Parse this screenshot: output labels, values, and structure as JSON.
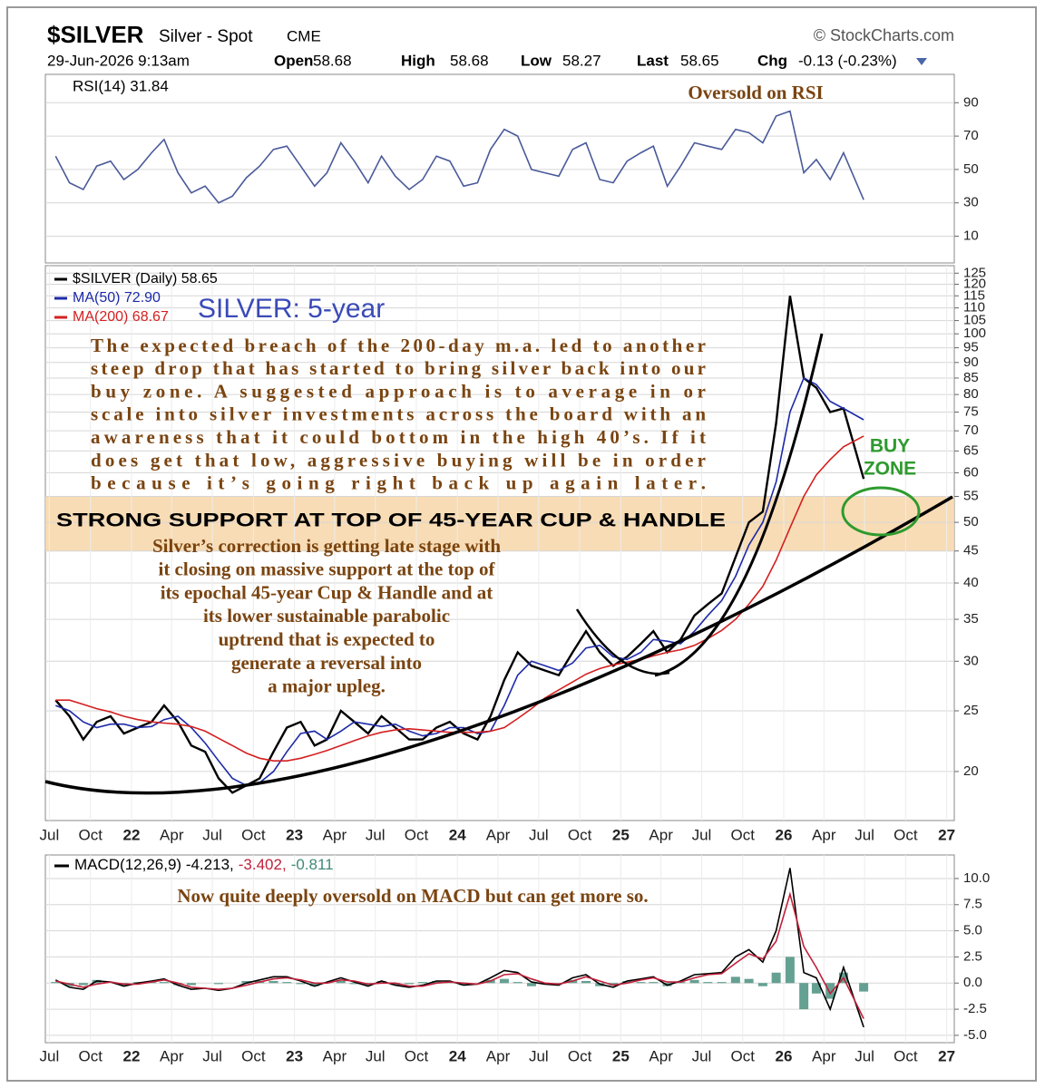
{
  "header": {
    "symbol": "$SILVER",
    "name": "Silver - Spot",
    "exchange": "CME",
    "source": "© StockCharts.com",
    "date": "29-Jun-2026 9:13am",
    "open_label": "Open",
    "open": "58.68",
    "high_label": "High",
    "high": "58.68",
    "low_label": "Low",
    "low": "58.27",
    "last_label": "Last",
    "last": "58.65",
    "chg_label": "Chg",
    "chg": "-0.13 (-0.23%)"
  },
  "chart_data": [
    {
      "type": "line",
      "xlim": [
        "2021-06-22",
        "2027-01-18"
      ],
      "ylim": [
        -6,
        107
      ],
      "yticks": [
        10,
        30,
        50,
        70,
        90
      ],
      "grid": true,
      "x": [
        "2021-07-15",
        "2021-08-15",
        "2021-09-15",
        "2021-10-15",
        "2021-11-15",
        "2021-12-15",
        "2022-01-15",
        "2022-02-15",
        "2022-03-15",
        "2022-04-15",
        "2022-05-15",
        "2022-06-15",
        "2022-07-15",
        "2022-08-15",
        "2022-09-15",
        "2022-10-15",
        "2022-11-15",
        "2022-12-15",
        "2023-01-15",
        "2023-02-15",
        "2023-03-15",
        "2023-04-15",
        "2023-05-15",
        "2023-06-15",
        "2023-07-15",
        "2023-08-15",
        "2023-09-15",
        "2023-10-15",
        "2023-11-15",
        "2023-12-15",
        "2024-01-15",
        "2024-02-15",
        "2024-03-15",
        "2024-04-15",
        "2024-05-15",
        "2024-06-15",
        "2024-07-15",
        "2024-08-15",
        "2024-09-15",
        "2024-10-15",
        "2024-11-15",
        "2024-12-15",
        "2025-01-15",
        "2025-02-15",
        "2025-03-15",
        "2025-04-15",
        "2025-05-15",
        "2025-06-15",
        "2025-07-15",
        "2025-08-15",
        "2025-09-15",
        "2025-10-15",
        "2025-11-15",
        "2025-12-15",
        "2026-01-15",
        "2026-02-15",
        "2026-03-15",
        "2026-04-15",
        "2026-05-15",
        "2026-06-29"
      ],
      "series": [
        {
          "name": "RSI(14) 31.84",
          "color": "#4a5a9a",
          "values": [
            58,
            42,
            38,
            52,
            55,
            44,
            50,
            60,
            68,
            48,
            36,
            40,
            30,
            34,
            45,
            52,
            62,
            64,
            52,
            40,
            48,
            66,
            55,
            42,
            58,
            46,
            38,
            44,
            58,
            55,
            40,
            42,
            62,
            74,
            70,
            50,
            48,
            46,
            62,
            66,
            44,
            42,
            55,
            60,
            64,
            40,
            52,
            66,
            64,
            62,
            74,
            72,
            66,
            82,
            85,
            48,
            56,
            44,
            60,
            31.84
          ]
        }
      ],
      "annotation": "Oversold on RSI"
    },
    {
      "type": "line",
      "log_scale": true,
      "xlim": [
        "2021-06-22",
        "2027-01-18"
      ],
      "ylim": [
        16.7,
        128.5
      ],
      "grid": true,
      "yticks": [
        20,
        25,
        30,
        35,
        40,
        45,
        50,
        55,
        60,
        65,
        70,
        75,
        80,
        85,
        90,
        95,
        100,
        105,
        110,
        115,
        120,
        125
      ],
      "xticks": [
        {
          "value": "2021-07-01",
          "label": "Jul"
        },
        {
          "value": "2021-10-01",
          "label": "Oct"
        },
        {
          "value": "2022-01-01",
          "label": "22"
        },
        {
          "value": "2022-04-01",
          "label": "Apr"
        },
        {
          "value": "2022-07-01",
          "label": "Jul"
        },
        {
          "value": "2022-10-01",
          "label": "Oct"
        },
        {
          "value": "2023-01-01",
          "label": "23"
        },
        {
          "value": "2023-04-01",
          "label": "Apr"
        },
        {
          "value": "2023-07-01",
          "label": "Jul"
        },
        {
          "value": "2023-10-01",
          "label": "Oct"
        },
        {
          "value": "2024-01-01",
          "label": "24"
        },
        {
          "value": "2024-04-01",
          "label": "Apr"
        },
        {
          "value": "2024-07-01",
          "label": "Jul"
        },
        {
          "value": "2024-10-01",
          "label": "Oct"
        },
        {
          "value": "2025-01-01",
          "label": "25"
        },
        {
          "value": "2025-04-01",
          "label": "Apr"
        },
        {
          "value": "2025-07-01",
          "label": "Jul"
        },
        {
          "value": "2025-10-01",
          "label": "Oct"
        },
        {
          "value": "2026-01-01",
          "label": "26"
        },
        {
          "value": "2026-04-01",
          "label": "Apr"
        },
        {
          "value": "2026-07-01",
          "label": "Jul"
        },
        {
          "value": "2026-10-01",
          "label": "Oct"
        },
        {
          "value": "2027-01-01",
          "label": "27"
        }
      ],
      "x": [
        "2021-07-15",
        "2021-08-15",
        "2021-09-15",
        "2021-10-15",
        "2021-11-15",
        "2021-12-15",
        "2022-01-15",
        "2022-02-15",
        "2022-03-15",
        "2022-04-15",
        "2022-05-15",
        "2022-06-15",
        "2022-07-15",
        "2022-08-15",
        "2022-09-15",
        "2022-10-15",
        "2022-11-15",
        "2022-12-15",
        "2023-01-15",
        "2023-02-15",
        "2023-03-15",
        "2023-04-15",
        "2023-05-15",
        "2023-06-15",
        "2023-07-15",
        "2023-08-15",
        "2023-09-15",
        "2023-10-15",
        "2023-11-15",
        "2023-12-15",
        "2024-01-15",
        "2024-02-15",
        "2024-03-15",
        "2024-04-15",
        "2024-05-15",
        "2024-06-15",
        "2024-07-15",
        "2024-08-15",
        "2024-09-15",
        "2024-10-15",
        "2024-11-15",
        "2024-12-15",
        "2025-01-15",
        "2025-02-15",
        "2025-03-15",
        "2025-04-15",
        "2025-05-15",
        "2025-06-15",
        "2025-07-15",
        "2025-08-15",
        "2025-09-15",
        "2025-10-15",
        "2025-11-15",
        "2025-12-15",
        "2026-01-15",
        "2026-02-15",
        "2026-03-15",
        "2026-04-15",
        "2026-05-15",
        "2026-06-29"
      ],
      "series": [
        {
          "name": "$SILVER (Daily) 58.65",
          "color": "#000000",
          "values": [
            26,
            24.5,
            22.5,
            24,
            24.5,
            23,
            23.5,
            24,
            25.5,
            24,
            22,
            21.5,
            19.5,
            18.5,
            19,
            19.5,
            21.5,
            23.5,
            24,
            22,
            22.5,
            25,
            24,
            23,
            24.5,
            23.5,
            22.5,
            22.5,
            23.5,
            24,
            23,
            22.5,
            24.5,
            28,
            31,
            29.5,
            29,
            28.5,
            31,
            33.5,
            31,
            29.5,
            30.5,
            32,
            33.5,
            31,
            32.5,
            35.5,
            37,
            38.5,
            44,
            50,
            52,
            72,
            115,
            85,
            82,
            75,
            76,
            58.65
          ]
        },
        {
          "name": "MA(50) 72.90",
          "color": "#1c2aa8",
          "values": [
            25.5,
            25,
            24,
            23.5,
            23.8,
            23.8,
            23.5,
            23.6,
            24.2,
            24.5,
            23.5,
            22.2,
            20.8,
            19.5,
            19,
            19.2,
            20,
            21.5,
            23,
            23.2,
            22.5,
            23.2,
            24,
            23.8,
            23.6,
            23.8,
            23.2,
            22.8,
            23,
            23.5,
            23.5,
            23,
            23.2,
            25.5,
            28.5,
            30,
            29.5,
            29,
            29.8,
            31.5,
            31.8,
            30.5,
            30.2,
            31,
            32.5,
            32.3,
            32,
            33.5,
            35.5,
            37.5,
            41,
            46,
            50,
            58,
            75,
            85,
            83,
            78,
            76,
            72.9
          ]
        },
        {
          "name": "MA(200) 68.67",
          "color": "#d42020",
          "values": [
            26,
            26,
            25.6,
            25.2,
            24.9,
            24.5,
            24.2,
            24,
            23.9,
            23.8,
            23.6,
            23.2,
            22.6,
            22,
            21.4,
            21,
            20.8,
            20.8,
            21,
            21.3,
            21.6,
            22,
            22.4,
            22.8,
            23.1,
            23.3,
            23.4,
            23.3,
            23.2,
            23.1,
            23.1,
            23.1,
            23.2,
            23.5,
            24.3,
            25.2,
            26.2,
            27,
            27.8,
            28.6,
            29.2,
            29.6,
            29.9,
            30.2,
            30.6,
            31,
            31.3,
            31.8,
            32.6,
            33.6,
            35,
            37,
            39.5,
            43.5,
            49,
            55,
            59.5,
            63,
            66,
            68.67
          ]
        }
      ],
      "support_zone": [
        45,
        55
      ],
      "annotations": {
        "title": "SILVER: 5-year",
        "commentary": [
          "The expected breach of the 200-day m.a. led to another",
          "steep drop that has started to bring silver back into our",
          "buy zone. A suggested approach is to average in or",
          "scale into silver investments across the board with an",
          "awareness that it could bottom in the high 40’s. If it",
          "does get that low, aggressive buying will be in order",
          "because it’s going right back up again later."
        ],
        "support": "STRONG SUPPORT AT TOP OF 45-YEAR CUP & HANDLE",
        "support_commentary": [
          "Silver’s correction is getting late stage with",
          "it closing on massive support at the top of",
          "its epochal 45-year Cup & Handle and at",
          "its lower sustainable parabolic",
          "uptrend that is expected to",
          "generate a reversal into",
          "a major upleg."
        ],
        "buy_zone": [
          "BUY",
          "ZONE"
        ]
      }
    },
    {
      "type": "line",
      "xlim": [
        "2021-06-22",
        "2027-01-18"
      ],
      "ylim": [
        -5.7,
        12.25
      ],
      "grid": true,
      "yticks": [
        {
          "value": 10,
          "label": "10.0"
        },
        {
          "value": 7.5,
          "label": "7.5"
        },
        {
          "value": 5,
          "label": "5.0"
        },
        {
          "value": 2.5,
          "label": "2.5"
        },
        {
          "value": 0,
          "label": "0.0"
        },
        {
          "value": -2.5,
          "label": "-2.5"
        },
        {
          "value": -5,
          "label": "-5.0"
        }
      ],
      "xticks": [
        {
          "value": "2021-07-01",
          "label": "Jul"
        },
        {
          "value": "2021-10-01",
          "label": "Oct"
        },
        {
          "value": "2022-01-01",
          "label": "22"
        },
        {
          "value": "2022-04-01",
          "label": "Apr"
        },
        {
          "value": "2022-07-01",
          "label": "Jul"
        },
        {
          "value": "2022-10-01",
          "label": "Oct"
        },
        {
          "value": "2023-01-01",
          "label": "23"
        },
        {
          "value": "2023-04-01",
          "label": "Apr"
        },
        {
          "value": "2023-07-01",
          "label": "Jul"
        },
        {
          "value": "2023-10-01",
          "label": "Oct"
        },
        {
          "value": "2024-01-01",
          "label": "24"
        },
        {
          "value": "2024-04-01",
          "label": "Apr"
        },
        {
          "value": "2024-07-01",
          "label": "Jul"
        },
        {
          "value": "2024-10-01",
          "label": "Oct"
        },
        {
          "value": "2025-01-01",
          "label": "25"
        },
        {
          "value": "2025-04-01",
          "label": "Apr"
        },
        {
          "value": "2025-07-01",
          "label": "Jul"
        },
        {
          "value": "2025-10-01",
          "label": "Oct"
        },
        {
          "value": "2026-01-01",
          "label": "26"
        },
        {
          "value": "2026-04-01",
          "label": "Apr"
        },
        {
          "value": "2026-07-01",
          "label": "Jul"
        },
        {
          "value": "2026-10-01",
          "label": "Oct"
        },
        {
          "value": "2027-01-01",
          "label": "27"
        }
      ],
      "x": [
        "2021-07-15",
        "2021-08-15",
        "2021-09-15",
        "2021-10-15",
        "2021-11-15",
        "2021-12-15",
        "2022-01-15",
        "2022-02-15",
        "2022-03-15",
        "2022-04-15",
        "2022-05-15",
        "2022-06-15",
        "2022-07-15",
        "2022-08-15",
        "2022-09-15",
        "2022-10-15",
        "2022-11-15",
        "2022-12-15",
        "2023-01-15",
        "2023-02-15",
        "2023-03-15",
        "2023-04-15",
        "2023-05-15",
        "2023-06-15",
        "2023-07-15",
        "2023-08-15",
        "2023-09-15",
        "2023-10-15",
        "2023-11-15",
        "2023-12-15",
        "2024-01-15",
        "2024-02-15",
        "2024-03-15",
        "2024-04-15",
        "2024-05-15",
        "2024-06-15",
        "2024-07-15",
        "2024-08-15",
        "2024-09-15",
        "2024-10-15",
        "2024-11-15",
        "2024-12-15",
        "2025-01-15",
        "2025-02-15",
        "2025-03-15",
        "2025-04-15",
        "2025-05-15",
        "2025-06-15",
        "2025-07-15",
        "2025-08-15",
        "2025-09-15",
        "2025-10-15",
        "2025-11-15",
        "2025-12-15",
        "2026-01-15",
        "2026-02-15",
        "2026-03-15",
        "2026-04-15",
        "2026-05-15",
        "2026-06-29"
      ],
      "series": [
        {
          "name": "-0.811",
          "type": "bar",
          "color": "#3f8a78",
          "values": [
            0.1,
            -0.3,
            -0.2,
            0.3,
            0,
            -0.2,
            0.1,
            0.1,
            0.1,
            -0.2,
            -0.2,
            0,
            -0.1,
            0,
            0.2,
            0.2,
            0.2,
            0.1,
            -0.1,
            -0.3,
            0.1,
            0.2,
            -0.1,
            -0.2,
            0.2,
            -0.2,
            -0.1,
            0.1,
            0.2,
            0.1,
            -0.2,
            0,
            0.3,
            0.4,
            0.1,
            -0.3,
            -0.1,
            -0.1,
            0.3,
            0.2,
            -0.3,
            -0.2,
            0.2,
            0.1,
            0.1,
            -0.3,
            0.1,
            0.3,
            0.1,
            0.1,
            0.6,
            0.4,
            -0.3,
            1,
            2.5,
            -2.5,
            -1,
            -1.5,
            1,
            -0.811
          ]
        },
        {
          "name": "MACD(12,26,9) -4.213,",
          "color": "#000000",
          "values": [
            0.3,
            -0.4,
            -0.6,
            0.2,
            0.1,
            -0.3,
            0,
            0.2,
            0.4,
            -0.2,
            -0.6,
            -0.5,
            -0.7,
            -0.5,
            0,
            0.3,
            0.6,
            0.6,
            0.2,
            -0.3,
            0.1,
            0.5,
            0.1,
            -0.3,
            0.2,
            -0.2,
            -0.4,
            -0.2,
            0.2,
            0.2,
            -0.2,
            -0.1,
            0.5,
            1.2,
            1,
            0.1,
            -0.1,
            -0.2,
            0.5,
            0.8,
            -0.1,
            -0.4,
            0.2,
            0.4,
            0.6,
            -0.2,
            0.2,
            0.8,
            0.9,
            1,
            2.5,
            3.2,
            2,
            5,
            11,
            1,
            0.5,
            -2.5,
            1.5,
            -4.213
          ]
        },
        {
          "name": "-3.402,",
          "color": "#c0203a",
          "values": [
            0.2,
            -0.1,
            -0.4,
            -0.1,
            0.1,
            -0.1,
            -0.1,
            0.1,
            0.3,
            0,
            -0.4,
            -0.5,
            -0.6,
            -0.5,
            -0.2,
            0.1,
            0.4,
            0.5,
            0.3,
            0,
            0,
            0.3,
            0.2,
            -0.1,
            0,
            0,
            -0.3,
            -0.3,
            0,
            0.1,
            0,
            -0.1,
            0.2,
            0.8,
            0.9,
            0.4,
            0,
            -0.1,
            0.2,
            0.6,
            0.2,
            -0.2,
            0,
            0.3,
            0.5,
            0.1,
            0.1,
            0.5,
            0.8,
            0.9,
            1.9,
            2.8,
            2.3,
            4,
            8.5,
            3.5,
            1.5,
            -1,
            0.5,
            -3.402
          ]
        }
      ],
      "annotation": "Now quite deeply oversold on MACD but can get more so."
    }
  ]
}
